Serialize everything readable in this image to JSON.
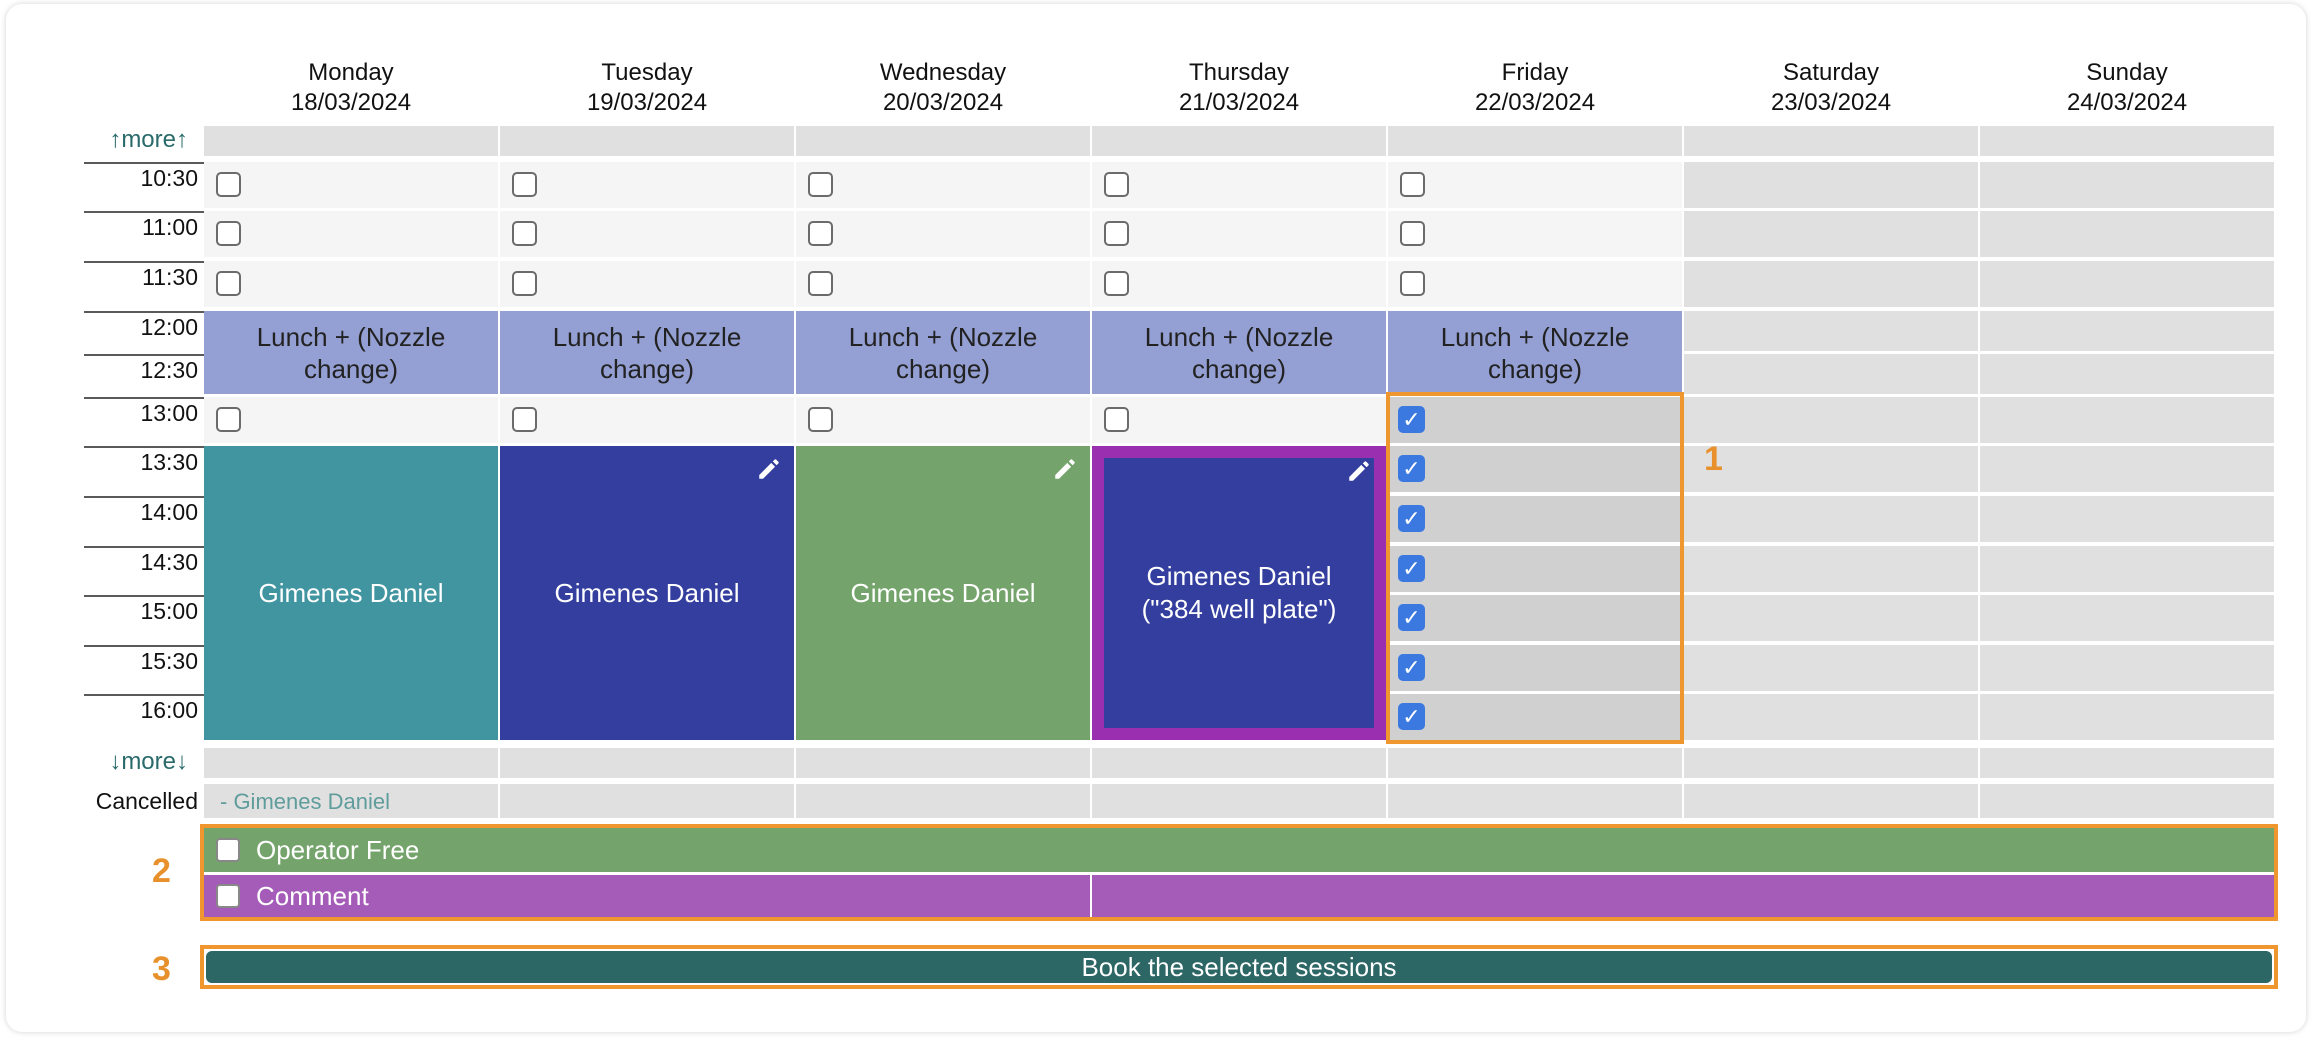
{
  "days": [
    {
      "name": "Monday",
      "date": "18/03/2024"
    },
    {
      "name": "Tuesday",
      "date": "19/03/2024"
    },
    {
      "name": "Wednesday",
      "date": "20/03/2024"
    },
    {
      "name": "Thursday",
      "date": "21/03/2024"
    },
    {
      "name": "Friday",
      "date": "22/03/2024"
    },
    {
      "name": "Saturday",
      "date": "23/03/2024"
    },
    {
      "name": "Sunday",
      "date": "24/03/2024"
    }
  ],
  "more_up": "↑more↑",
  "more_down": "↓more↓",
  "times": [
    "10:30",
    "11:00",
    "11:30",
    "12:00",
    "12:30",
    "13:00",
    "13:30",
    "14:00",
    "14:30",
    "15:00",
    "15:30",
    "16:00"
  ],
  "lunch_label": "Lunch + (Nozzle change)",
  "bookings": [
    {
      "label": "Gimenes Daniel",
      "color": "#4095a0",
      "editable": false
    },
    {
      "label": "Gimenes Daniel",
      "color": "#333e9e",
      "editable": true
    },
    {
      "label": "Gimenes Daniel",
      "color": "#74a46b",
      "editable": true
    },
    {
      "label": "Gimenes Daniel (\"384 well plate\")",
      "color": "#333e9e",
      "border_color": "#9a2fb0",
      "editable": true
    }
  ],
  "friday_selected_count": 7,
  "cancelled": {
    "label": "Cancelled",
    "entry": "- Gimenes Daniel"
  },
  "options": {
    "operator_free": {
      "label": "Operator Free",
      "color": "#74a46b",
      "checked": false
    },
    "comment": {
      "label": "Comment",
      "color": "#a55cb8",
      "checked": false
    }
  },
  "book_button": "Book the selected sessions",
  "callouts": [
    "1",
    "2",
    "3"
  ],
  "colors": {
    "highlight": "#f0962e",
    "checkbox_checked": "#3b78e0",
    "lunch": "#949fd3",
    "book_button": "#2c6665"
  }
}
